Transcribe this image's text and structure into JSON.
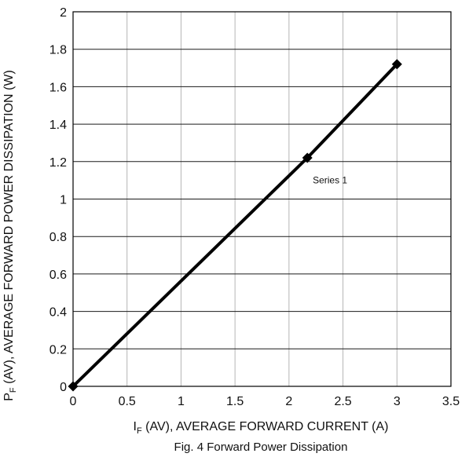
{
  "chart_data": {
    "type": "line",
    "caption": "Fig. 4 Forward Power Dissipation",
    "xlabel": {
      "main_prefix": "I",
      "subscript": "F",
      "rest": " (AV), AVERAGE FORWARD CURRENT (A)"
    },
    "ylabel": {
      "main_prefix": "P",
      "subscript": "F",
      "rest": " (AV), AVERAGE FORWARD POWER DISSIPATION (W)"
    },
    "xlim": [
      0,
      3.5
    ],
    "ylim": [
      0,
      2
    ],
    "xticks": [
      0,
      0.5,
      1,
      1.5,
      2,
      2.5,
      3,
      3.5
    ],
    "xtick_labels": [
      "0",
      "0.5",
      "1",
      "1.5",
      "2",
      "2.5",
      "3",
      "3.5"
    ],
    "yticks": [
      0,
      0.2,
      0.4,
      0.6,
      0.8,
      1,
      1.2,
      1.4,
      1.6,
      1.8,
      2
    ],
    "ytick_labels": [
      "0",
      "0.2",
      "0.4",
      "0.6",
      "0.8",
      "1",
      "1.2",
      "1.4",
      "1.6",
      "1.8",
      "2"
    ],
    "grid": true,
    "series": [
      {
        "name": "Series 1",
        "x": [
          0,
          2.17,
          3.0
        ],
        "y": [
          0,
          1.22,
          1.72
        ],
        "color": "#000000",
        "marker": "diamond"
      }
    ],
    "annotations": [
      {
        "text": "Series 1",
        "x": 2.22,
        "y": 1.1
      }
    ]
  }
}
